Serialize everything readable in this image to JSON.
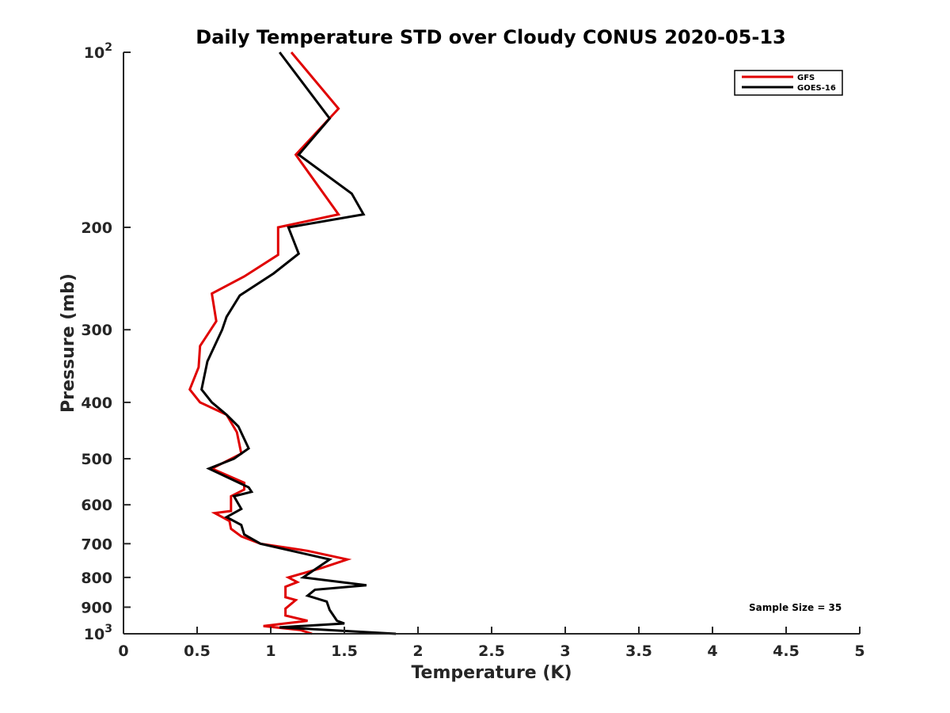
{
  "chart_data": {
    "type": "line",
    "title": "Daily Temperature STD over Cloudy CONUS 2020-05-13",
    "xlabel": "Temperature (K)",
    "ylabel": "Pressure (mb)",
    "xlim": [
      0,
      5
    ],
    "ylim": [
      100,
      1000
    ],
    "y_scale": "log",
    "y_reversed": true,
    "x_ticks": [
      "0",
      "0.5",
      "1",
      "1.5",
      "2",
      "2.5",
      "3",
      "3.5",
      "4",
      "4.5",
      "5"
    ],
    "y_ticks": [
      {
        "value": 100,
        "base": "10",
        "exp": "2"
      },
      {
        "value": 200,
        "label": "200"
      },
      {
        "value": 300,
        "label": "300"
      },
      {
        "value": 400,
        "label": "400"
      },
      {
        "value": 500,
        "label": "500"
      },
      {
        "value": 600,
        "label": "600"
      },
      {
        "value": 700,
        "label": "700"
      },
      {
        "value": 800,
        "label": "800"
      },
      {
        "value": 900,
        "label": "900"
      },
      {
        "value": 1000,
        "base": "10",
        "exp": "3"
      }
    ],
    "grid": false,
    "legend_position": "top-right",
    "annotation": "Sample Size = 35",
    "series": [
      {
        "name": "GFS",
        "color": "#e00000",
        "points": [
          [
            1.14,
            100
          ],
          [
            1.46,
            125
          ],
          [
            1.17,
            150
          ],
          [
            1.46,
            190
          ],
          [
            1.05,
            200
          ],
          [
            1.05,
            223
          ],
          [
            0.82,
            243
          ],
          [
            0.6,
            260
          ],
          [
            0.63,
            290
          ],
          [
            0.52,
            320
          ],
          [
            0.51,
            348
          ],
          [
            0.45,
            380
          ],
          [
            0.52,
            400
          ],
          [
            0.7,
            420
          ],
          [
            0.77,
            450
          ],
          [
            0.8,
            490
          ],
          [
            0.6,
            520
          ],
          [
            0.82,
            550
          ],
          [
            0.82,
            565
          ],
          [
            0.73,
            580
          ],
          [
            0.73,
            615
          ],
          [
            0.62,
            620
          ],
          [
            0.72,
            640
          ],
          [
            0.73,
            660
          ],
          [
            0.8,
            680
          ],
          [
            0.93,
            700
          ],
          [
            1.25,
            720
          ],
          [
            1.52,
            745
          ],
          [
            1.35,
            770
          ],
          [
            1.12,
            800
          ],
          [
            1.18,
            815
          ],
          [
            1.1,
            830
          ],
          [
            1.1,
            865
          ],
          [
            1.17,
            875
          ],
          [
            1.1,
            905
          ],
          [
            1.1,
            930
          ],
          [
            1.25,
            950
          ],
          [
            0.95,
            970
          ],
          [
            1.2,
            985
          ],
          [
            1.28,
            1000
          ]
        ]
      },
      {
        "name": "GOES-16",
        "color": "#000000",
        "points": [
          [
            1.06,
            100
          ],
          [
            1.4,
            130
          ],
          [
            1.19,
            150
          ],
          [
            1.55,
            175
          ],
          [
            1.63,
            190
          ],
          [
            1.12,
            200
          ],
          [
            1.19,
            222
          ],
          [
            1.02,
            240
          ],
          [
            0.79,
            262
          ],
          [
            0.7,
            285
          ],
          [
            0.67,
            300
          ],
          [
            0.57,
            340
          ],
          [
            0.53,
            380
          ],
          [
            0.6,
            400
          ],
          [
            0.7,
            420
          ],
          [
            0.78,
            440
          ],
          [
            0.85,
            480
          ],
          [
            0.75,
            500
          ],
          [
            0.58,
            520
          ],
          [
            0.85,
            560
          ],
          [
            0.87,
            570
          ],
          [
            0.75,
            580
          ],
          [
            0.8,
            610
          ],
          [
            0.7,
            630
          ],
          [
            0.8,
            650
          ],
          [
            0.82,
            675
          ],
          [
            0.93,
            700
          ],
          [
            1.4,
            745
          ],
          [
            1.22,
            800
          ],
          [
            1.65,
            825
          ],
          [
            1.3,
            840
          ],
          [
            1.25,
            860
          ],
          [
            1.38,
            880
          ],
          [
            1.4,
            910
          ],
          [
            1.45,
            950
          ],
          [
            1.5,
            960
          ],
          [
            1.06,
            975
          ],
          [
            1.85,
            1000
          ]
        ]
      }
    ]
  }
}
